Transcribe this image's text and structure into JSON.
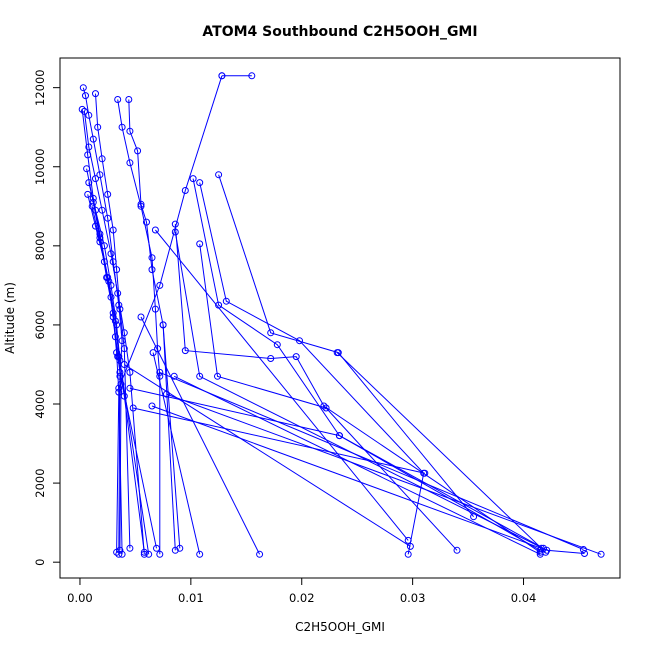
{
  "chart_data": {
    "type": "line",
    "title": "ATOM4 Southbound C2H5OOH_GMI",
    "xlabel": "C2H5OOH_GMI",
    "ylabel": "Altitude (m)",
    "xlim": [
      -0.0018,
      0.0487
    ],
    "ylim": [
      -400,
      12750
    ],
    "xticks": [
      0.0,
      0.01,
      0.02,
      0.03,
      0.04
    ],
    "xtick_labels": [
      "0.00",
      "0.01",
      "0.02",
      "0.03",
      "0.04"
    ],
    "yticks": [
      0,
      2000,
      4000,
      6000,
      8000,
      10000,
      12000
    ],
    "ytick_labels": [
      "0",
      "2000",
      "4000",
      "6000",
      "8000",
      "10000",
      "12000"
    ],
    "grid": false,
    "legend": "none",
    "color": "#0000ff",
    "series": [
      {
        "points": [
          [
            0.0003,
            12000
          ],
          [
            0.0005,
            11800
          ],
          [
            0.0008,
            11300
          ],
          [
            0.0012,
            10700
          ],
          [
            0.0018,
            9800
          ],
          [
            0.0025,
            8700
          ],
          [
            0.003,
            7600
          ],
          [
            0.0035,
            6500
          ],
          [
            0.0038,
            5600
          ],
          [
            0.0036,
            4700
          ],
          [
            0.0035,
            200
          ]
        ]
      },
      {
        "points": [
          [
            0.0014,
            11850
          ],
          [
            0.0016,
            11000
          ],
          [
            0.002,
            10200
          ],
          [
            0.0025,
            9300
          ],
          [
            0.003,
            8400
          ],
          [
            0.0033,
            7400
          ],
          [
            0.0036,
            6400
          ],
          [
            0.004,
            5400
          ],
          [
            0.0045,
            350
          ]
        ]
      },
      {
        "points": [
          [
            0.0034,
            11700
          ],
          [
            0.0038,
            11000
          ],
          [
            0.0045,
            10100
          ],
          [
            0.0055,
            9000
          ],
          [
            0.0065,
            7700
          ],
          [
            0.0068,
            6400
          ],
          [
            0.007,
            5400
          ],
          [
            0.0072,
            4700
          ],
          [
            0.0072,
            200
          ]
        ]
      },
      {
        "points": [
          [
            0.0044,
            11700
          ],
          [
            0.0045,
            10900
          ],
          [
            0.0052,
            10400
          ],
          [
            0.0055,
            9050
          ],
          [
            0.006,
            8600
          ],
          [
            0.0065,
            7400
          ],
          [
            0.0075,
            6000
          ],
          [
            0.009,
            350
          ]
        ]
      },
      {
        "points": [
          [
            0.0002,
            11450
          ],
          [
            0.0007,
            10300
          ],
          [
            0.0012,
            9200
          ],
          [
            0.0018,
            8300
          ],
          [
            0.0025,
            7200
          ],
          [
            0.003,
            6200
          ],
          [
            0.0033,
            5300
          ],
          [
            0.0035,
            4300
          ],
          [
            0.0033,
            250
          ]
        ]
      },
      {
        "points": [
          [
            0.0004,
            11400
          ],
          [
            0.0008,
            10500
          ],
          [
            0.0014,
            9700
          ],
          [
            0.002,
            8900
          ],
          [
            0.0028,
            7800
          ],
          [
            0.0034,
            6800
          ],
          [
            0.004,
            5800
          ],
          [
            0.0045,
            4800
          ],
          [
            0.0058,
            200
          ]
        ]
      },
      {
        "points": [
          [
            0.0006,
            9950
          ],
          [
            0.0012,
            9100
          ],
          [
            0.0018,
            8200
          ],
          [
            0.0024,
            7200
          ],
          [
            0.003,
            6300
          ],
          [
            0.0034,
            5200
          ],
          [
            0.004,
            4200
          ],
          [
            0.0058,
            250
          ]
        ]
      },
      {
        "points": [
          [
            0.0008,
            9600
          ],
          [
            0.0014,
            8900
          ],
          [
            0.0022,
            8000
          ],
          [
            0.0028,
            7000
          ],
          [
            0.0033,
            6000
          ],
          [
            0.0036,
            5100
          ],
          [
            0.0062,
            200
          ]
        ]
      },
      {
        "points": [
          [
            0.0007,
            9300
          ],
          [
            0.0014,
            8500
          ],
          [
            0.0022,
            7600
          ],
          [
            0.0028,
            6700
          ],
          [
            0.0032,
            5700
          ],
          [
            0.0036,
            4800
          ],
          [
            0.0069,
            350
          ]
        ]
      },
      {
        "points": [
          [
            0.0011,
            9000
          ],
          [
            0.0018,
            8100
          ],
          [
            0.0026,
            7100
          ],
          [
            0.0032,
            6100
          ],
          [
            0.0035,
            5200
          ],
          [
            0.0037,
            4500
          ],
          [
            0.0036,
            300
          ]
        ]
      },
      {
        "points": [
          [
            0.0128,
            12300
          ],
          [
            0.0155,
            12300
          ]
        ]
      },
      {
        "points": [
          [
            0.0128,
            12300
          ],
          [
            0.0095,
            9400
          ],
          [
            0.0072,
            7000
          ],
          [
            0.0035,
            4400
          ],
          [
            0.0038,
            200
          ]
        ]
      },
      {
        "points": [
          [
            0.0102,
            9700
          ],
          [
            0.0125,
            6500
          ],
          [
            0.0178,
            5500
          ],
          [
            0.0234,
            3200
          ],
          [
            0.0415,
            300
          ]
        ]
      },
      {
        "points": [
          [
            0.0108,
            9600
          ],
          [
            0.0132,
            6600
          ],
          [
            0.0198,
            5600
          ],
          [
            0.031,
            2250
          ],
          [
            0.0296,
            200
          ]
        ]
      },
      {
        "points": [
          [
            0.0125,
            9800
          ],
          [
            0.0172,
            5800
          ],
          [
            0.0233,
            5300
          ],
          [
            0.0355,
            1150
          ]
        ]
      },
      {
        "points": [
          [
            0.0108,
            8050
          ],
          [
            0.0124,
            4700
          ],
          [
            0.0222,
            3900
          ],
          [
            0.034,
            300
          ]
        ]
      },
      {
        "points": [
          [
            0.0086,
            8550
          ],
          [
            0.0095,
            5350
          ],
          [
            0.0172,
            5150
          ],
          [
            0.0195,
            5200
          ],
          [
            0.022,
            3950
          ],
          [
            0.0415,
            250
          ]
        ]
      },
      {
        "points": [
          [
            0.0086,
            8350
          ],
          [
            0.0108,
            4700
          ],
          [
            0.0421,
            300
          ],
          [
            0.0455,
            220
          ]
        ]
      },
      {
        "points": [
          [
            0.0085,
            4700
          ],
          [
            0.0415,
            200
          ]
        ]
      },
      {
        "points": [
          [
            0.0078,
            4250
          ],
          [
            0.047,
            200
          ]
        ]
      },
      {
        "points": [
          [
            0.0072,
            4800
          ],
          [
            0.0454,
            320
          ]
        ]
      },
      {
        "points": [
          [
            0.0065,
            3950
          ],
          [
            0.0416,
            350
          ]
        ]
      },
      {
        "points": [
          [
            0.0055,
            6200
          ],
          [
            0.0162,
            200
          ]
        ]
      },
      {
        "points": [
          [
            0.0066,
            5300
          ],
          [
            0.0108,
            200
          ]
        ]
      },
      {
        "points": [
          [
            0.0075,
            6000
          ],
          [
            0.0086,
            300
          ]
        ]
      },
      {
        "points": [
          [
            0.004,
            5000
          ],
          [
            0.0298,
            400
          ]
        ]
      },
      {
        "points": [
          [
            0.0068,
            8400
          ],
          [
            0.0296,
            550
          ]
        ]
      },
      {
        "points": [
          [
            0.0045,
            4400
          ],
          [
            0.0234,
            3200
          ],
          [
            0.0418,
            350
          ]
        ]
      },
      {
        "points": [
          [
            0.0232,
            5300
          ],
          [
            0.042,
            250
          ]
        ]
      },
      {
        "points": [
          [
            0.0048,
            3900
          ],
          [
            0.0311,
            2250
          ]
        ]
      }
    ]
  }
}
